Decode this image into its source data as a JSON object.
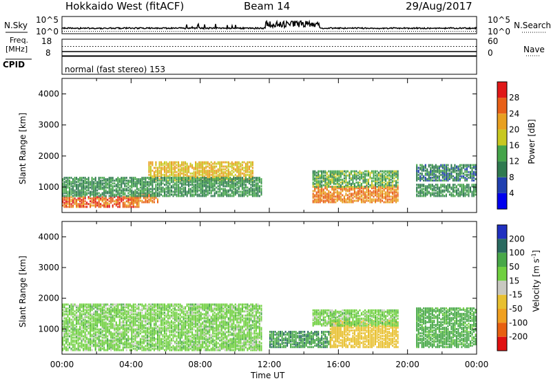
{
  "header": {
    "station": "Hokkaido West (fitACF)",
    "beam": "Beam 14",
    "date": "29/Aug/2017"
  },
  "noise_panel": {
    "left_label": "N.Sky",
    "right_label": "N.Search",
    "left_ticks": [
      "10^5",
      "10^0"
    ],
    "right_ticks": [
      "10^5",
      "10^0"
    ]
  },
  "freq_panel": {
    "left_label_1": "Freq.",
    "left_label_2": "[MHz]",
    "right_label": "Nave",
    "left_ticks": [
      "18",
      "8"
    ],
    "right_ticks": [
      "60",
      "0"
    ]
  },
  "cpid_panel": {
    "label": "CPID",
    "text": "normal (fast stereo) 153"
  },
  "x_axis": {
    "title": "Time UT",
    "ticks": [
      "00:00",
      "04:00",
      "08:00",
      "12:00",
      "16:00",
      "20:00",
      "00:00"
    ]
  },
  "chart_data": [
    {
      "type": "heatmap",
      "title": "Power",
      "ylabel": "Slant Range [km]",
      "xlabel": "Time UT",
      "ylim": [
        180,
        4500
      ],
      "yticks": [
        "1000",
        "2000",
        "3000",
        "4000"
      ],
      "colorbar": {
        "label": "Power [dB]",
        "ticks": [
          "4",
          "8",
          "12",
          "16",
          "20",
          "24",
          "28"
        ],
        "colors": [
          "#0000ee",
          "#2040b0",
          "#2f7a50",
          "#45a54a",
          "#c8c820",
          "#e8a020",
          "#e86018",
          "#e01818"
        ]
      },
      "regions": [
        {
          "t0": 0,
          "t1": 4.5,
          "r0": 350,
          "r1": 700,
          "level": 26
        },
        {
          "t0": 4.0,
          "t1": 5.5,
          "r0": 500,
          "r1": 800,
          "level": 24
        },
        {
          "t0": 5.0,
          "t1": 11.0,
          "r0": 1200,
          "r1": 1800,
          "level": 20
        },
        {
          "t0": 0,
          "t1": 11.5,
          "r0": 700,
          "r1": 1300,
          "level": 12
        },
        {
          "t0": 14.5,
          "t1": 19.5,
          "r0": 500,
          "r1": 1000,
          "level": 24
        },
        {
          "t0": 14.5,
          "t1": 19.5,
          "r0": 1000,
          "r1": 1500,
          "level": 14
        },
        {
          "t0": 20.5,
          "t1": 24,
          "r0": 1200,
          "r1": 1700,
          "level": 10
        },
        {
          "t0": 20.5,
          "t1": 24,
          "r0": 700,
          "r1": 1100,
          "level": 12
        }
      ]
    },
    {
      "type": "heatmap",
      "title": "Velocity",
      "ylabel": "Slant Range [km]",
      "xlabel": "Time UT",
      "ylim": [
        180,
        4500
      ],
      "yticks": [
        "1000",
        "2000",
        "3000",
        "4000"
      ],
      "colorbar": {
        "label": "Velocity [m s^-1]",
        "ticks": [
          "200",
          "100",
          "50",
          "15",
          "-15",
          "-50",
          "-100",
          "-200"
        ],
        "colors": [
          "#2030c0",
          "#2a6a60",
          "#48a848",
          "#70d040",
          "#c8c8c0",
          "#e8c030",
          "#f0a020",
          "#e86010",
          "#e01010"
        ]
      },
      "regions": [
        {
          "t0": 0,
          "t1": 11.5,
          "r0": 300,
          "r1": 1800,
          "level": 0
        },
        {
          "t0": 12.0,
          "t1": 15.5,
          "r0": 400,
          "r1": 900,
          "level": 40
        },
        {
          "t0": 15.5,
          "t1": 19.5,
          "r0": 400,
          "r1": 1300,
          "level": -70
        },
        {
          "t0": 14.5,
          "t1": 19.5,
          "r0": 1100,
          "r1": 1600,
          "level": 0
        },
        {
          "t0": 20.5,
          "t1": 24,
          "r0": 400,
          "r1": 1700,
          "level": 30
        }
      ]
    }
  ]
}
